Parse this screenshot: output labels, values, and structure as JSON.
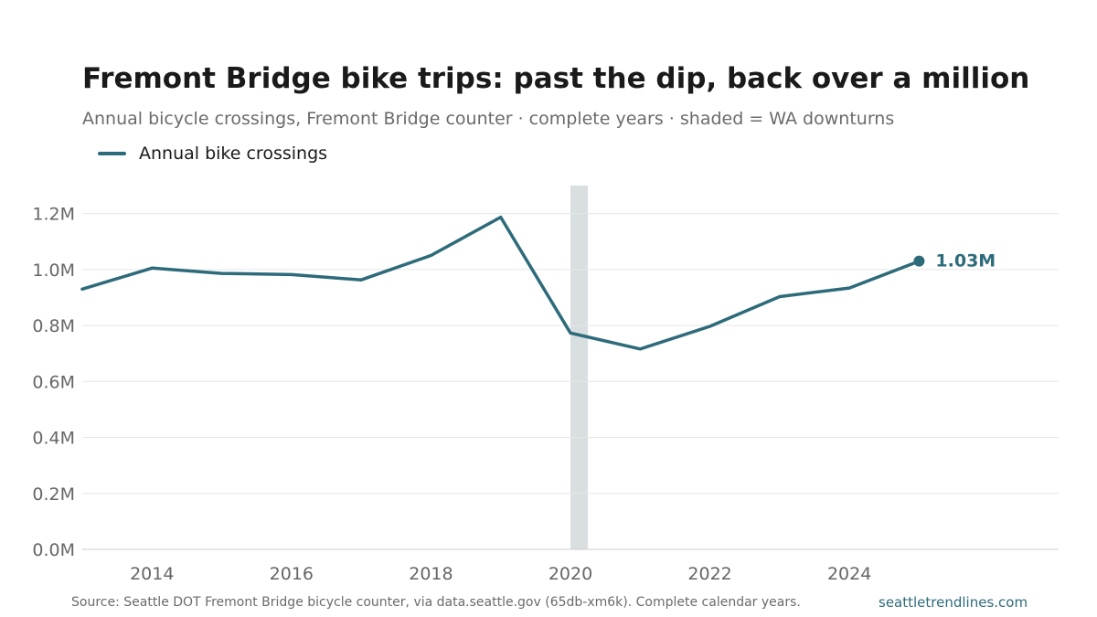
{
  "header": {
    "title": "Fremont Bridge bike trips: past the dip, back over a million",
    "subtitle": "Annual bicycle crossings, Fremont Bridge counter · complete years · shaded = WA downturns"
  },
  "legend": {
    "label": "Annual bike crossings"
  },
  "footer": {
    "source": "Source: Seattle DOT Fremont Bridge bicycle counter, via data.seattle.gov (65db-xm6k). Complete calendar years.",
    "site": "seattletrendlines.com"
  },
  "colors": {
    "line": "#2e6b7a",
    "shade": "#d9dee1",
    "grid": "#e6e6e6",
    "axis": "#cccccc",
    "tick": "#666666"
  },
  "chart_data": {
    "type": "line",
    "x": [
      2013,
      2014,
      2015,
      2016,
      2017,
      2018,
      2019,
      2020,
      2021,
      2022,
      2023,
      2024,
      2025
    ],
    "series": [
      {
        "name": "Annual bike crossings",
        "values": [
          0.93,
          1.005,
          0.986,
          0.982,
          0.963,
          1.05,
          1.187,
          0.773,
          0.716,
          0.797,
          0.903,
          0.934,
          1.03
        ]
      }
    ],
    "xlim": [
      2013,
      2027
    ],
    "ylim": [
      0,
      1.3
    ],
    "x_ticks": [
      2014,
      2016,
      2018,
      2020,
      2022,
      2024
    ],
    "x_tick_labels": [
      "2014",
      "2016",
      "2018",
      "2020",
      "2022",
      "2024"
    ],
    "y_ticks": [
      0,
      0.2,
      0.4,
      0.6,
      0.8,
      1.0,
      1.2
    ],
    "y_tick_labels": [
      "0.0M",
      "0.2M",
      "0.4M",
      "0.6M",
      "0.8M",
      "1.0M",
      "1.2M"
    ],
    "shaded_ranges": [
      [
        2020,
        2020.25
      ]
    ],
    "end_label": "1.03M",
    "grid": "horizontal"
  }
}
